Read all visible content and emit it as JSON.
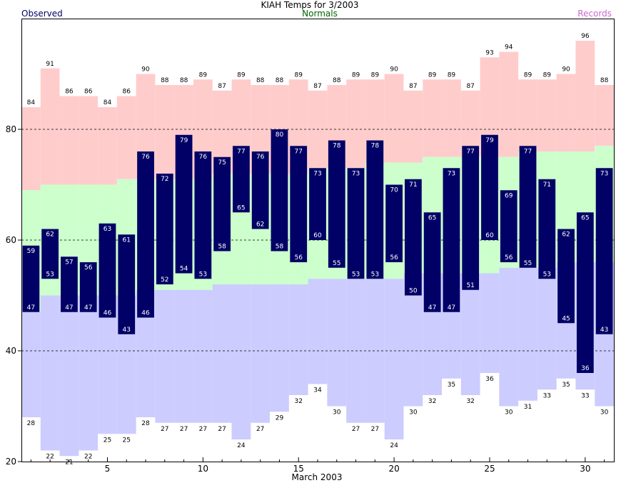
{
  "chart_data": {
    "type": "bar",
    "title": "KIAH Temps for 3/2003",
    "xlabel": "March 2003",
    "ylabel": "",
    "xlim": [
      0.5,
      31.5
    ],
    "ylim": [
      20,
      100
    ],
    "x_ticks": [
      5,
      10,
      15,
      20,
      25,
      30
    ],
    "y_ticks": [
      20,
      40,
      60,
      80
    ],
    "grid_lines_y": [
      40,
      60,
      80
    ],
    "legend": {
      "observed": "Observed",
      "normals": "Normals",
      "records": "Records"
    },
    "colors": {
      "observed": "#000066",
      "observed_label": "#000066",
      "normals_band": "#ccffcc",
      "normals_label": "#006600",
      "records_high_band": "#ffcccc",
      "records_low_band": "#ccccff",
      "records_label": "#cc66cc"
    },
    "days": [
      1,
      2,
      3,
      4,
      5,
      6,
      7,
      8,
      9,
      10,
      11,
      12,
      13,
      14,
      15,
      16,
      17,
      18,
      19,
      20,
      21,
      22,
      23,
      24,
      25,
      26,
      27,
      28,
      29,
      30,
      31
    ],
    "series": [
      {
        "name": "Observed",
        "key": "obs_high",
        "values": [
          59,
          62,
          57,
          56,
          63,
          61,
          76,
          72,
          79,
          76,
          75,
          77,
          76,
          80,
          77,
          73,
          78,
          73,
          78,
          70,
          71,
          65,
          73,
          77,
          79,
          69,
          77,
          71,
          62,
          65,
          73
        ]
      },
      {
        "name": "Observed",
        "key": "obs_low",
        "values": [
          47,
          53,
          47,
          47,
          46,
          43,
          46,
          52,
          54,
          53,
          58,
          65,
          62,
          58,
          56,
          60,
          55,
          53,
          53,
          56,
          50,
          47,
          47,
          51,
          60,
          56,
          55,
          53,
          45,
          36,
          43
        ]
      },
      {
        "name": "Normals",
        "key": "normal_high",
        "values": [
          69,
          70,
          70,
          70,
          70,
          71,
          71,
          71,
          71,
          71,
          72,
          72,
          72,
          72,
          72,
          73,
          73,
          73,
          74,
          74,
          74,
          75,
          75,
          75,
          75,
          75,
          76,
          76,
          76,
          76,
          77
        ]
      },
      {
        "name": "Normals",
        "key": "normal_low",
        "values": [
          47,
          50,
          50,
          50,
          50,
          50,
          51,
          51,
          51,
          51,
          52,
          52,
          52,
          52,
          52,
          53,
          53,
          53,
          53,
          53,
          54,
          54,
          54,
          54,
          54,
          55,
          55,
          55,
          56,
          56,
          56
        ]
      },
      {
        "name": "Records",
        "key": "record_high",
        "values": [
          84,
          91,
          86,
          86,
          84,
          86,
          90,
          88,
          88,
          89,
          87,
          89,
          88,
          88,
          89,
          87,
          88,
          89,
          89,
          90,
          87,
          89,
          89,
          87,
          93,
          94,
          89,
          89,
          90,
          96,
          88
        ]
      },
      {
        "name": "Records",
        "key": "record_low",
        "values": [
          28,
          22,
          21,
          22,
          25,
          25,
          28,
          27,
          27,
          27,
          27,
          24,
          27,
          29,
          32,
          34,
          30,
          27,
          27,
          24,
          30,
          32,
          35,
          32,
          36,
          30,
          31,
          33,
          35,
          33,
          30
        ]
      }
    ]
  }
}
